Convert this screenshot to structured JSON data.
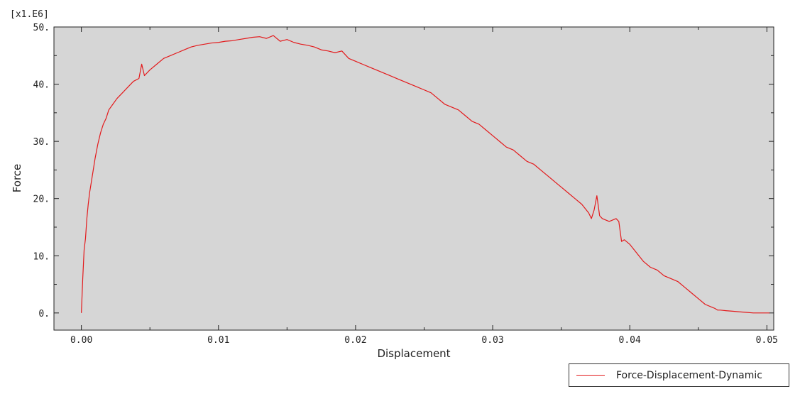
{
  "chart_data": {
    "type": "line",
    "xlabel": "Displacement",
    "ylabel": "Force",
    "y_multiplier_label": "[x1.E6]",
    "xlim": [
      -0.002,
      0.0505
    ],
    "ylim": [
      -3,
      50
    ],
    "x_ticks": [
      0.0,
      0.01,
      0.02,
      0.03,
      0.04,
      0.05
    ],
    "x_tick_labels": [
      "0.00",
      "0.01",
      "0.02",
      "0.03",
      "0.04",
      "0.05"
    ],
    "y_ticks": [
      0,
      10,
      20,
      30,
      40,
      50
    ],
    "y_tick_labels": [
      "0.",
      "10.",
      "20.",
      "30.",
      "40.",
      "50."
    ],
    "grid": false,
    "legend_position": "bottom-right",
    "series": [
      {
        "name": "Force-Displacement-Dynamic",
        "color": "#e31a1c",
        "x": [
          0.0,
          0.0001,
          0.0002,
          0.0003,
          0.0004,
          0.0005,
          0.0006,
          0.0008,
          0.001,
          0.0012,
          0.0014,
          0.0016,
          0.0018,
          0.002,
          0.0023,
          0.0026,
          0.003,
          0.0034,
          0.0038,
          0.0042,
          0.0044,
          0.0046,
          0.005,
          0.0055,
          0.006,
          0.0065,
          0.007,
          0.0075,
          0.008,
          0.0085,
          0.009,
          0.0095,
          0.01,
          0.0105,
          0.011,
          0.0115,
          0.012,
          0.0125,
          0.013,
          0.0135,
          0.014,
          0.0145,
          0.015,
          0.0155,
          0.016,
          0.0165,
          0.017,
          0.0175,
          0.018,
          0.0185,
          0.019,
          0.0195,
          0.02,
          0.0205,
          0.021,
          0.0215,
          0.022,
          0.0225,
          0.023,
          0.0235,
          0.024,
          0.0245,
          0.025,
          0.0255,
          0.026,
          0.0265,
          0.027,
          0.0275,
          0.028,
          0.0285,
          0.029,
          0.0295,
          0.03,
          0.0305,
          0.031,
          0.0315,
          0.032,
          0.0325,
          0.033,
          0.0335,
          0.034,
          0.0345,
          0.035,
          0.0355,
          0.036,
          0.0365,
          0.037,
          0.0372,
          0.0374,
          0.0376,
          0.0378,
          0.038,
          0.0385,
          0.039,
          0.0392,
          0.0394,
          0.0396,
          0.04,
          0.0405,
          0.041,
          0.0415,
          0.042,
          0.0425,
          0.043,
          0.0435,
          0.044,
          0.0445,
          0.045,
          0.0455,
          0.046,
          0.0462,
          0.0464,
          0.0466,
          0.047,
          0.0475,
          0.048,
          0.0485,
          0.049,
          0.0495,
          0.05,
          0.0502
        ],
        "y": [
          0.0,
          6.0,
          11.0,
          13.0,
          16.5,
          19.0,
          21.0,
          24.0,
          27.0,
          29.5,
          31.5,
          33.0,
          34.0,
          35.5,
          36.5,
          37.5,
          38.5,
          39.5,
          40.5,
          41.0,
          43.5,
          41.5,
          42.5,
          43.5,
          44.5,
          45.0,
          45.5,
          46.0,
          46.5,
          46.8,
          47.0,
          47.2,
          47.3,
          47.5,
          47.6,
          47.8,
          48.0,
          48.2,
          48.3,
          48.0,
          48.5,
          47.5,
          47.8,
          47.3,
          47.0,
          46.8,
          46.5,
          46.0,
          45.8,
          45.5,
          45.8,
          44.5,
          44.0,
          43.5,
          43.0,
          42.5,
          42.0,
          41.5,
          41.0,
          40.5,
          40.0,
          39.5,
          39.0,
          38.5,
          37.5,
          36.5,
          36.0,
          35.5,
          34.5,
          33.5,
          33.0,
          32.0,
          31.0,
          30.0,
          29.0,
          28.5,
          27.5,
          26.5,
          26.0,
          25.0,
          24.0,
          23.0,
          22.0,
          21.0,
          20.0,
          19.0,
          17.5,
          16.5,
          18.0,
          20.5,
          17.0,
          16.5,
          16.0,
          16.5,
          16.0,
          12.5,
          12.8,
          12.0,
          10.5,
          9.0,
          8.0,
          7.5,
          6.5,
          6.0,
          5.5,
          4.5,
          3.5,
          2.5,
          1.5,
          1.0,
          0.8,
          0.5,
          0.5,
          0.4,
          0.3,
          0.2,
          0.1,
          0.0,
          0.0,
          0.0,
          0.0
        ]
      }
    ]
  }
}
